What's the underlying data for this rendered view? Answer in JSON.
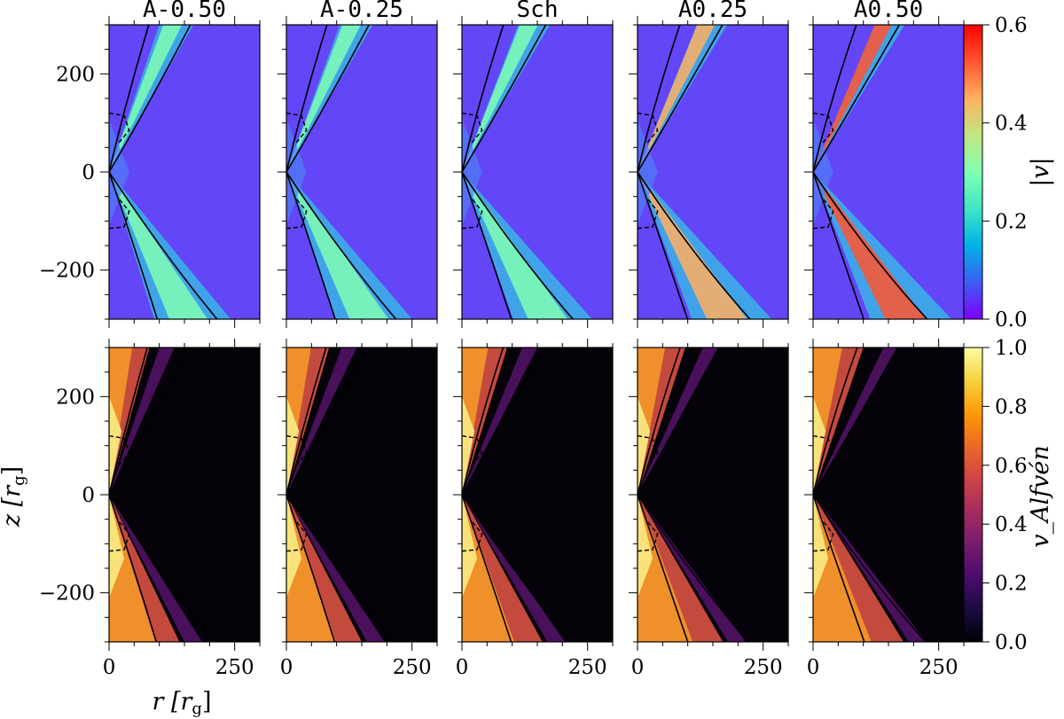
{
  "chart_data": {
    "type": "heatmap",
    "panel_titles": [
      "A-0.50",
      "A-0.25",
      "Sch",
      "A0.25",
      "A0.50"
    ],
    "xlabel": "r [r_g]",
    "ylabel": "z [r_g]",
    "xlim": [
      0,
      300
    ],
    "ylim": [
      -300,
      300
    ],
    "xticks": [
      0,
      250
    ],
    "yticks": [
      -200,
      0,
      200
    ],
    "x_tick_labels": [
      "0",
      "250"
    ],
    "y_tick_labels": [
      "−200",
      "0",
      "200"
    ],
    "rows": [
      {
        "quantity": "|v|",
        "colormap": "rainbow",
        "colorbar_label": "|v|",
        "colorbar_range": [
          0.0,
          0.6
        ],
        "colorbar_ticks": [
          0.0,
          0.2,
          0.4,
          0.6
        ],
        "colorbar_tick_labels": [
          "0.0",
          "0.2",
          "0.4",
          "0.6"
        ],
        "jet_peak_value": [
          0.28,
          0.3,
          0.27,
          0.45,
          0.52
        ]
      },
      {
        "quantity": "v_Alfvén",
        "colormap": "inferno",
        "colorbar_label": "v_Alfvén",
        "colorbar_range": [
          0.0,
          1.0
        ],
        "colorbar_ticks": [
          0.0,
          0.2,
          0.4,
          0.6,
          0.8,
          1.0
        ],
        "colorbar_tick_labels": [
          "0.0",
          "0.2",
          "0.4",
          "0.6",
          "0.8",
          "1.0"
        ]
      }
    ],
    "grid": false
  }
}
